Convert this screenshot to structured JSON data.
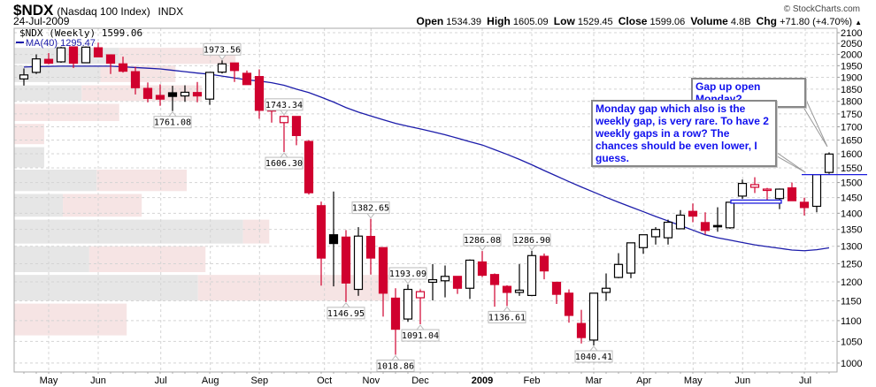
{
  "header": {
    "symbol": "$NDX",
    "name": "(Nasdaq 100 Index)",
    "exchange": "INDX",
    "date": "24-Jul-2009",
    "copyright": "© StockCharts.com",
    "open_label": "Open",
    "open": "1534.39",
    "high_label": "High",
    "high": "1605.09",
    "low_label": "Low",
    "low": "1529.45",
    "close_label": "Close",
    "close": "1599.06",
    "volume_label": "Volume",
    "volume": "4.8B",
    "chg_label": "Chg",
    "chg": "+71.80 (+4.70%)",
    "chg_arrow": "▲"
  },
  "legend": {
    "price": "$NDX (Weekly) 1599.06",
    "ma": "MA(40) 1295.47"
  },
  "annotations": {
    "gap_up": "Gap up open Monday?",
    "monday_gap": "Monday gap which also is the weekly gap, is very rare. To have 2 weekly gaps in a row? The chances should be even lower, I guess."
  },
  "colors": {
    "up": "#000000",
    "down": "#d0002e",
    "ma": "#1c1caa",
    "annotation_text": "#1010ee",
    "vbp_up": "#e6e6e6",
    "vbp_down": "#f6e4e4",
    "gap_line": "#1c1cdd"
  },
  "chart_data": {
    "type": "candlestick",
    "period": "weekly",
    "scale": "log",
    "ylim": [
      1000,
      2100
    ],
    "yticks": [
      1000,
      1050,
      1100,
      1150,
      1200,
      1250,
      1300,
      1350,
      1400,
      1450,
      1500,
      1550,
      1600,
      1650,
      1700,
      1750,
      1800,
      1850,
      1900,
      1950,
      2000,
      2050,
      2100
    ],
    "yaxis_side": "right",
    "grid": true,
    "xticks": [
      {
        "label": "May",
        "bold": false
      },
      {
        "label": "Jun",
        "bold": false
      },
      {
        "label": "Jul",
        "bold": false
      },
      {
        "label": "Aug",
        "bold": false
      },
      {
        "label": "Sep",
        "bold": false
      },
      {
        "label": "Oct",
        "bold": false
      },
      {
        "label": "Nov",
        "bold": false
      },
      {
        "label": "Dec",
        "bold": false
      },
      {
        "label": "2009",
        "bold": true
      },
      {
        "label": "Feb",
        "bold": false
      },
      {
        "label": "Mar",
        "bold": false
      },
      {
        "label": "Apr",
        "bold": false
      },
      {
        "label": "May",
        "bold": false
      },
      {
        "label": "Jun",
        "bold": false
      },
      {
        "label": "Jul",
        "bold": false
      }
    ],
    "ohlc": [
      [
        1893,
        1938,
        1865,
        1910
      ],
      [
        1921,
        2000,
        1914,
        1980
      ],
      [
        1978,
        2006,
        1956,
        1961
      ],
      [
        1967,
        2035,
        1963,
        2030
      ],
      [
        2034,
        2034,
        1940,
        1961
      ],
      [
        1963,
        2036,
        1961,
        2033
      ],
      [
        2030,
        2054,
        1989,
        1989
      ],
      [
        1998,
        2000,
        1914,
        1961
      ],
      [
        1958,
        1990,
        1920,
        1926
      ],
      [
        1924,
        1945,
        1828,
        1856
      ],
      [
        1853,
        1878,
        1796,
        1812
      ],
      [
        1824,
        1870,
        1782,
        1809
      ],
      [
        1835,
        1864,
        1761.08,
        1820
      ],
      [
        1822,
        1866,
        1798,
        1837
      ],
      [
        1836,
        1880,
        1796,
        1822
      ],
      [
        1809,
        1921,
        1786,
        1921
      ],
      [
        1922,
        1973.56,
        1916,
        1958
      ],
      [
        1962,
        1962,
        1880,
        1929
      ],
      [
        1917,
        1929,
        1869,
        1869
      ],
      [
        1903,
        1934,
        1731,
        1764
      ],
      [
        1799,
        1799,
        1716,
        1761
      ],
      [
        1716,
        1743.34,
        1606.3,
        1740
      ],
      [
        1740,
        1740,
        1631,
        1667
      ],
      [
        1645,
        1650,
        1460,
        1466
      ],
      [
        1424,
        1437,
        1190,
        1266
      ],
      [
        1334,
        1470,
        1188,
        1308
      ],
      [
        1327,
        1348,
        1146.95,
        1197
      ],
      [
        1180,
        1357,
        1163,
        1330
      ],
      [
        1329,
        1382.65,
        1220,
        1266
      ],
      [
        1296,
        1296,
        1110,
        1170
      ],
      [
        1157,
        1183,
        1018.86,
        1079
      ],
      [
        1104,
        1193.09,
        1097,
        1180
      ],
      [
        1158,
        1180,
        1091.04,
        1174
      ],
      [
        1199,
        1249,
        1151,
        1206
      ],
      [
        1203,
        1245,
        1159,
        1215
      ],
      [
        1215,
        1215,
        1168,
        1183
      ],
      [
        1183,
        1262,
        1155,
        1260
      ],
      [
        1255,
        1286.08,
        1213,
        1218
      ],
      [
        1220,
        1223,
        1135,
        1193
      ],
      [
        1188,
        1191,
        1136.61,
        1172
      ],
      [
        1172,
        1249,
        1163,
        1178
      ],
      [
        1164,
        1286.9,
        1162,
        1273
      ],
      [
        1271,
        1279,
        1207,
        1230
      ],
      [
        1199,
        1200,
        1142,
        1167
      ],
      [
        1170,
        1180,
        1095,
        1113
      ],
      [
        1093,
        1127,
        1045,
        1059
      ],
      [
        1053,
        1170,
        1040.41,
        1170
      ],
      [
        1172,
        1223,
        1150,
        1183
      ],
      [
        1212,
        1280,
        1210,
        1248
      ],
      [
        1224,
        1310,
        1210,
        1310
      ],
      [
        1296,
        1334,
        1278,
        1334
      ],
      [
        1328,
        1357,
        1305,
        1350
      ],
      [
        1325,
        1380,
        1305,
        1372
      ],
      [
        1352,
        1410,
        1352,
        1394
      ],
      [
        1406,
        1431,
        1372,
        1391
      ],
      [
        1371,
        1403,
        1335,
        1347
      ],
      [
        1362,
        1419,
        1343,
        1358
      ],
      [
        1355,
        1435,
        1352,
        1435
      ],
      [
        1455,
        1510,
        1446,
        1497
      ],
      [
        1484,
        1518,
        1465,
        1493
      ],
      [
        1477,
        1482,
        1436,
        1478
      ],
      [
        1447,
        1480,
        1413,
        1478
      ],
      [
        1482,
        1500,
        1440,
        1440
      ],
      [
        1435,
        1450,
        1393,
        1418
      ],
      [
        1422,
        1527,
        1403,
        1527
      ],
      [
        1534.39,
        1605.09,
        1529.45,
        1599.06
      ]
    ],
    "ma40": [
      1944,
      1946,
      1947,
      1948,
      1948,
      1948,
      1948,
      1948,
      1945,
      1942,
      1939,
      1936,
      1930,
      1924,
      1918,
      1913,
      1905,
      1897,
      1889,
      1884,
      1877,
      1866,
      1850,
      1836,
      1817,
      1797,
      1775,
      1757,
      1742,
      1727,
      1713,
      1702,
      1692,
      1681,
      1670,
      1657,
      1644,
      1632,
      1615,
      1598,
      1580,
      1561,
      1541,
      1522,
      1503,
      1485,
      1468,
      1451,
      1435,
      1420,
      1405,
      1390,
      1376,
      1362,
      1348,
      1334,
      1325,
      1318,
      1311,
      1304,
      1299,
      1294,
      1289,
      1287,
      1290,
      1295.47
    ],
    "price_labels": [
      {
        "week": 16,
        "text": "1973.56",
        "pos": "above"
      },
      {
        "week": 12,
        "text": "1761.08",
        "pos": "below"
      },
      {
        "week": 21,
        "text": "1743.34",
        "pos": "above"
      },
      {
        "week": 21,
        "text": "1606.30",
        "pos": "below"
      },
      {
        "week": 28,
        "text": "1382.65",
        "pos": "above"
      },
      {
        "week": 26,
        "text": "1146.95",
        "pos": "below"
      },
      {
        "week": 31,
        "text": "1193.09",
        "pos": "above"
      },
      {
        "week": 32,
        "text": "1091.04",
        "pos": "below"
      },
      {
        "week": 30,
        "text": "1018.86",
        "pos": "below"
      },
      {
        "week": 37,
        "text": "1286.08",
        "pos": "above"
      },
      {
        "week": 39,
        "text": "1136.61",
        "pos": "below"
      },
      {
        "week": 41,
        "text": "1286.90",
        "pos": "above"
      },
      {
        "week": 46,
        "text": "1040.41",
        "pos": "below"
      }
    ],
    "volume_by_price": [
      {
        "low": 1952,
        "high": 2030,
        "up": 28,
        "down": 31
      },
      {
        "low": 1874,
        "high": 1952,
        "up": 23,
        "down": 20
      },
      {
        "low": 1796,
        "high": 1866,
        "up": 18,
        "down": 32
      },
      {
        "low": 1717,
        "high": 1790,
        "up": 0,
        "down": 28
      },
      {
        "low": 1630,
        "high": 1711,
        "up": 0,
        "down": 8
      },
      {
        "low": 1547,
        "high": 1624,
        "up": 8,
        "down": 0
      },
      {
        "low": 1467,
        "high": 1544,
        "up": 22,
        "down": 24
      },
      {
        "low": 1385,
        "high": 1462,
        "up": 13,
        "down": 21
      },
      {
        "low": 1304,
        "high": 1380,
        "up": 61,
        "down": 7
      },
      {
        "low": 1223,
        "high": 1300,
        "up": 20,
        "down": 31
      },
      {
        "low": 1147,
        "high": 1219,
        "up": 49,
        "down": 51
      },
      {
        "low": 1061,
        "high": 1143,
        "up": 0,
        "down": 30
      }
    ],
    "gap_lines": [
      {
        "price": 1527,
        "weeks": [
          63,
          67
        ]
      }
    ],
    "gap_box": {
      "low": 1432,
      "high": 1442,
      "weeks": [
        57,
        61
      ]
    }
  }
}
